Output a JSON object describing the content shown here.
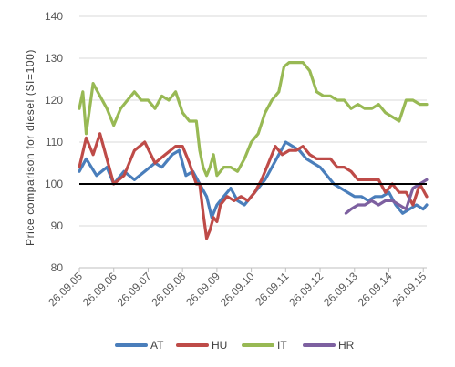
{
  "chart_data": {
    "type": "line",
    "title": "",
    "xlabel": "",
    "ylabel": "Price comparison for diesel (SI=100)",
    "ylim": [
      80,
      140
    ],
    "yticks": [
      "80",
      "90",
      "100",
      "110",
      "120",
      "130",
      "140"
    ],
    "xticks": [
      "26.09.05",
      "26.09.06",
      "26.09.07",
      "26.09.08",
      "26.09.09",
      "26.09.10",
      "26.09.11",
      "26.09.12",
      "26.09.13",
      "26.09.14",
      "26.09.15"
    ],
    "reference_line": 100,
    "grid": "horizontal",
    "legend": "bottom",
    "series": [
      {
        "name": "AT",
        "color": "#4a7ebb",
        "x": [
          0,
          0.2,
          0.5,
          0.8,
          1.0,
          1.3,
          1.6,
          1.9,
          2.2,
          2.4,
          2.7,
          2.9,
          3.1,
          3.3,
          3.5,
          3.7,
          3.85,
          4.0,
          4.2,
          4.4,
          4.6,
          4.8,
          5.0,
          5.2,
          5.4,
          5.6,
          5.8,
          6.0,
          6.2,
          6.4,
          6.6,
          6.8,
          7.0,
          7.2,
          7.4,
          7.6,
          7.8,
          8.0,
          8.2,
          8.4,
          8.6,
          8.8,
          9.0,
          9.2,
          9.4,
          9.6,
          9.8,
          10.0,
          10.1
        ],
        "y": [
          103,
          106,
          102,
          104,
          100,
          103,
          101,
          103,
          105,
          104,
          107,
          108,
          102,
          103,
          100,
          97,
          92,
          95,
          97,
          99,
          96,
          95,
          97,
          99,
          101,
          104,
          107,
          110,
          109,
          108,
          106,
          105,
          104,
          102,
          100,
          99,
          98,
          97,
          97,
          96,
          97,
          97,
          98,
          95,
          93,
          94,
          95,
          94,
          95
        ]
      },
      {
        "name": "HU",
        "color": "#be4b48",
        "x": [
          0,
          0.2,
          0.4,
          0.6,
          0.8,
          1.0,
          1.3,
          1.6,
          1.9,
          2.2,
          2.5,
          2.8,
          3.0,
          3.2,
          3.4,
          3.5,
          3.6,
          3.7,
          3.8,
          3.9,
          4.0,
          4.1,
          4.3,
          4.5,
          4.7,
          4.9,
          5.1,
          5.3,
          5.5,
          5.7,
          5.9,
          6.1,
          6.3,
          6.5,
          6.7,
          6.9,
          7.1,
          7.3,
          7.5,
          7.7,
          7.9,
          8.1,
          8.3,
          8.5,
          8.7,
          8.9,
          9.1,
          9.3,
          9.5,
          9.7,
          9.9,
          10.1
        ],
        "y": [
          104,
          111,
          107,
          112,
          106,
          100,
          102,
          108,
          110,
          105,
          107,
          109,
          109,
          105,
          100,
          100,
          93,
          87,
          89,
          92,
          91,
          95,
          97,
          96,
          97,
          96,
          98,
          101,
          105,
          109,
          107,
          108,
          108,
          109,
          107,
          106,
          106,
          106,
          104,
          104,
          103,
          101,
          101,
          101,
          101,
          98,
          100,
          98,
          98,
          95,
          100,
          97
        ]
      },
      {
        "name": "IT",
        "color": "#98b954",
        "x": [
          0,
          0.1,
          0.2,
          0.4,
          0.6,
          0.8,
          1.0,
          1.2,
          1.4,
          1.6,
          1.8,
          2.0,
          2.2,
          2.4,
          2.6,
          2.8,
          3.0,
          3.2,
          3.4,
          3.5,
          3.6,
          3.7,
          3.8,
          3.9,
          4.0,
          4.2,
          4.4,
          4.6,
          4.8,
          5.0,
          5.2,
          5.4,
          5.6,
          5.8,
          5.95,
          6.1,
          6.3,
          6.5,
          6.7,
          6.9,
          7.1,
          7.3,
          7.5,
          7.7,
          7.9,
          8.1,
          8.3,
          8.5,
          8.7,
          8.9,
          9.1,
          9.3,
          9.5,
          9.7,
          9.9,
          10.1
        ],
        "y": [
          118,
          122,
          112,
          124,
          121,
          118,
          114,
          118,
          120,
          122,
          120,
          120,
          118,
          121,
          120,
          122,
          117,
          115,
          115,
          108,
          104,
          102,
          104,
          107,
          102,
          104,
          104,
          103,
          106,
          110,
          112,
          117,
          120,
          122,
          128,
          129,
          129,
          129,
          127,
          122,
          121,
          121,
          120,
          120,
          118,
          119,
          118,
          118,
          119,
          117,
          116,
          115,
          120,
          120,
          119,
          119
        ]
      },
      {
        "name": "HR",
        "color": "#7d60a0",
        "x": [
          7.75,
          7.9,
          8.1,
          8.3,
          8.5,
          8.7,
          8.9,
          9.1,
          9.3,
          9.5,
          9.7,
          9.9,
          10.1
        ],
        "y": [
          93,
          94,
          95,
          95,
          96,
          95,
          96,
          96,
          95,
          94,
          99,
          100,
          101
        ]
      }
    ]
  }
}
